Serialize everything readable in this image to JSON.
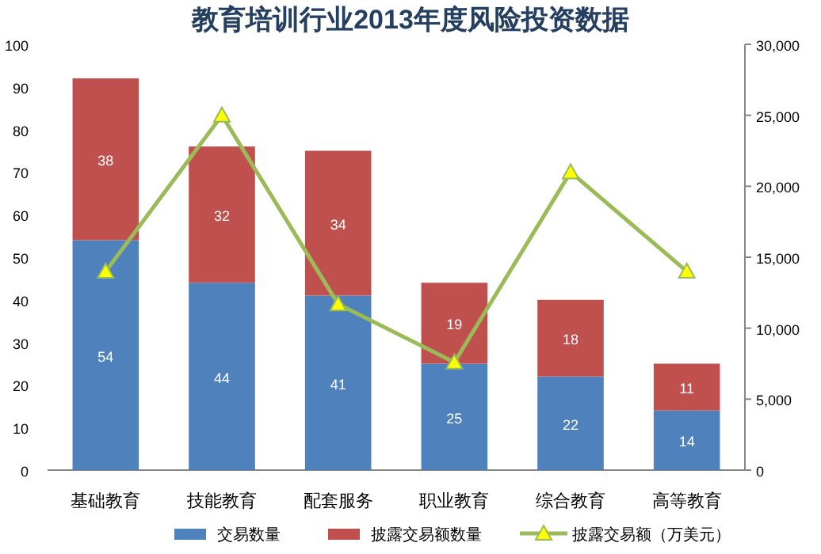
{
  "chart_data": {
    "type": "bar",
    "title": "教育培训行业2013年度风险投资数据",
    "stacked": true,
    "legend": "bottom",
    "categories": [
      "基础教育",
      "技能教育",
      "配套服务",
      "职业教育",
      "综合教育",
      "高等教育"
    ],
    "ylim": [
      0,
      100
    ],
    "yticks": [
      0,
      10,
      20,
      30,
      40,
      50,
      60,
      70,
      80,
      90,
      100
    ],
    "y2lim": [
      0,
      30000
    ],
    "y2ticks": [
      0,
      {
        "value": 5000,
        "label": "5,000"
      },
      {
        "value": 10000,
        "label": "10,000"
      },
      {
        "value": 15000,
        "label": "15,000"
      },
      {
        "value": 20000,
        "label": "20,000"
      },
      {
        "value": 25000,
        "label": "25,000"
      },
      {
        "value": 30000,
        "label": "30,000"
      }
    ],
    "series": [
      {
        "name": "交易数量",
        "color": "#4f81bd",
        "values": [
          54,
          44,
          41,
          25,
          22,
          14
        ],
        "value_labels": [
          "54",
          "44",
          "41",
          "25",
          "22",
          "14"
        ]
      },
      {
        "name": "披露交易额数量",
        "color": "#c0504d",
        "values": [
          38,
          32,
          34,
          19,
          18,
          11
        ],
        "value_labels": [
          "38",
          "32",
          "34",
          "19",
          "18",
          "11"
        ]
      },
      {
        "name": "披露交易额（万美元）",
        "type": "line",
        "axis": "y2",
        "color": "#9bbb59",
        "marker": "triangle",
        "values": [
          14000,
          25000,
          11700,
          7600,
          21000,
          14000
        ]
      }
    ]
  }
}
